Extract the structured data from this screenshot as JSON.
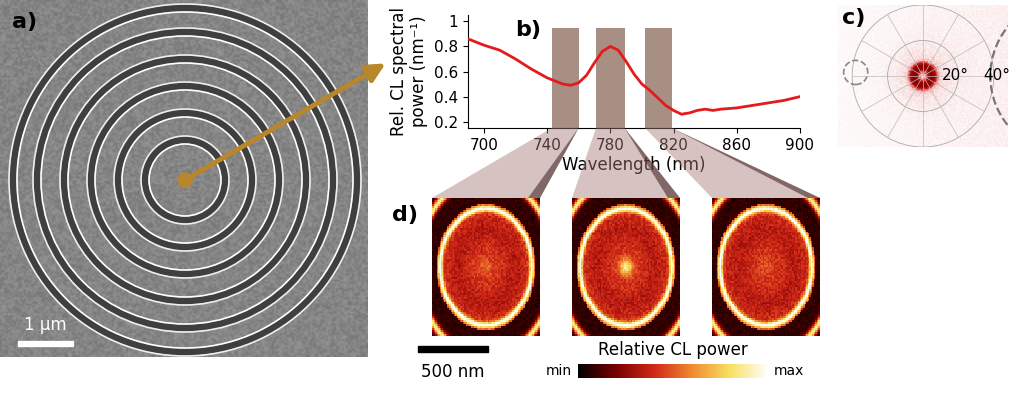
{
  "chart_data": {
    "type": "line",
    "annotations": [
      "b)"
    ],
    "x": [
      690,
      700,
      710,
      720,
      730,
      740,
      750,
      755,
      760,
      765,
      770,
      775,
      780,
      785,
      790,
      795,
      800,
      805,
      810,
      815,
      820,
      825,
      830,
      835,
      840,
      845,
      850,
      860,
      870,
      880,
      890,
      900
    ],
    "values": [
      0.86,
      0.81,
      0.77,
      0.7,
      0.62,
      0.55,
      0.5,
      0.49,
      0.51,
      0.57,
      0.67,
      0.76,
      0.8,
      0.77,
      0.68,
      0.58,
      0.5,
      0.45,
      0.39,
      0.33,
      0.29,
      0.26,
      0.27,
      0.29,
      0.3,
      0.29,
      0.3,
      0.31,
      0.33,
      0.35,
      0.37,
      0.4
    ],
    "color": "#e41a1c",
    "xlabel": "Wavelength (nm)",
    "ylabel": "Rel. CL spectral\npower (nm⁻¹)",
    "xlim": [
      690,
      900
    ],
    "xticks": [
      700,
      740,
      780,
      820,
      860,
      900
    ],
    "ylim": [
      0.15,
      1.05
    ],
    "yticks": [
      0.2,
      0.4,
      0.6,
      0.8,
      1
    ],
    "bands": [
      [
        743,
        760
      ],
      [
        771,
        789
      ],
      [
        802,
        819
      ]
    ],
    "band_top": 0.95
  },
  "panel_a": {
    "label": "a)",
    "scale_bar": "1 µm"
  },
  "panel_c": {
    "label": "c)",
    "angle_labels": [
      "20°",
      "40°"
    ]
  },
  "panel_d": {
    "label": "d)",
    "scale_bar": "500 nm",
    "colorbar_label": "Relative CL power",
    "colorbar_ticks": [
      "min",
      "max"
    ]
  }
}
